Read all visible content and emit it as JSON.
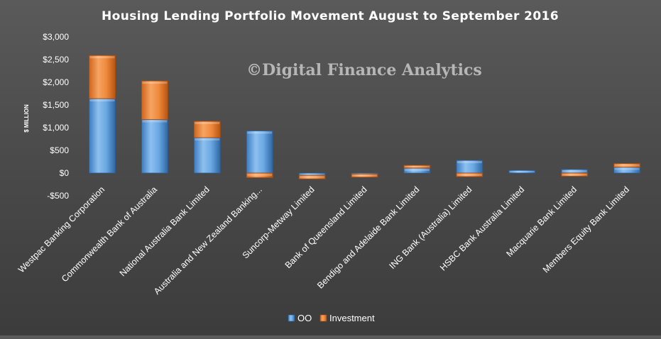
{
  "chart_data": {
    "type": "bar",
    "stacked": true,
    "title": "Housing Lending Portfolio Movement August to September 2016",
    "watermark": "©Digital Finance Analytics",
    "ylabel": "$ MILLION",
    "xlabel": "",
    "ylim": [
      -500,
      3000
    ],
    "yticks": [
      3000,
      2500,
      2000,
      1500,
      1000,
      500,
      0,
      -500
    ],
    "ytick_labels": [
      "$3,000",
      "$2,500",
      "$2,000",
      "$1,500",
      "$1,000",
      "$500",
      "$0",
      "-$500"
    ],
    "grid": false,
    "legend_position": "bottom",
    "categories": [
      "Westpac Banking Corporation",
      "Commonwealth Bank of Australia",
      "National Australia Bank Limited",
      "Australia and New Zealand Banking...",
      "Suncorp-Metway Limited",
      "Bank of Queensland Limited",
      "Bendigo and Adelaide Bank Limited",
      "ING Bank (Australia) Limited",
      "HSBC Bank Australia Limited",
      "Macquarie Bank Limited",
      "Members Equity Bank Limited"
    ],
    "series": [
      {
        "name": "OO",
        "color": "#5b9bd5",
        "values": [
          1640,
          1180,
          780,
          930,
          -50,
          -20,
          110,
          280,
          60,
          80,
          130
        ]
      },
      {
        "name": "Investment",
        "color": "#ed7d31",
        "values": [
          950,
          850,
          360,
          -100,
          -80,
          -70,
          60,
          -80,
          0,
          -70,
          80
        ]
      }
    ]
  }
}
